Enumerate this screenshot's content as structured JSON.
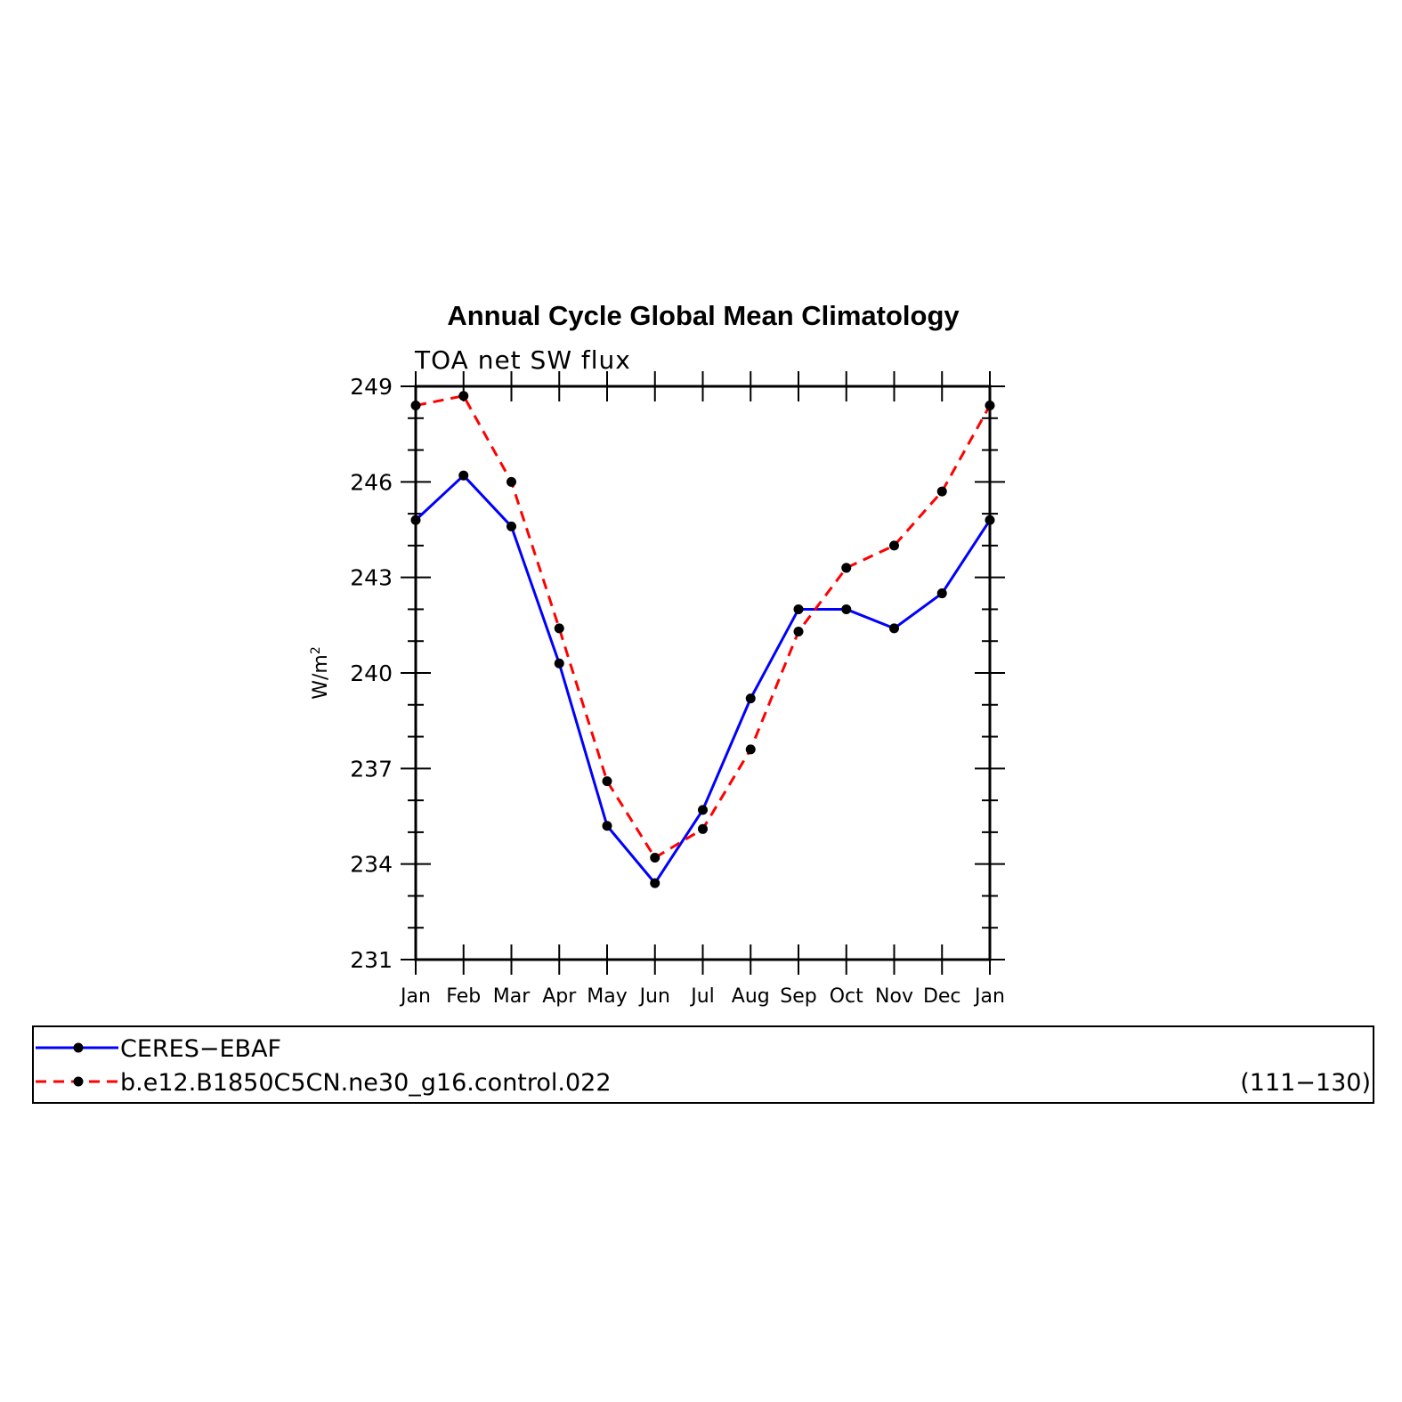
{
  "chart_data": {
    "type": "line",
    "title": "Annual Cycle Global Mean Climatology",
    "subtitle": "TOA net SW flux",
    "xlabel": "",
    "ylabel": "W/m",
    "ylabel_sup": "2",
    "categories": [
      "Jan",
      "Feb",
      "Mar",
      "Apr",
      "May",
      "Jun",
      "Jul",
      "Aug",
      "Sep",
      "Oct",
      "Nov",
      "Dec",
      "Jan"
    ],
    "ylim": [
      231,
      249
    ],
    "yticks": [
      231,
      234,
      237,
      240,
      243,
      246,
      249
    ],
    "grid": false,
    "legend_position": "bottom",
    "series": [
      {
        "name": "CERES−EBAF",
        "color": "#0000ff",
        "style": "solid",
        "values": [
          244.8,
          246.2,
          244.6,
          240.3,
          235.2,
          233.4,
          235.7,
          239.2,
          242.0,
          242.0,
          241.4,
          242.5,
          244.8
        ]
      },
      {
        "name": "b.e12.B1850C5CN.ne30_g16.control.022",
        "color": "#ff0000",
        "style": "dashed",
        "values": [
          248.4,
          248.7,
          246.0,
          241.4,
          236.6,
          234.2,
          235.1,
          237.6,
          241.3,
          243.3,
          244.0,
          245.7,
          248.4
        ]
      }
    ],
    "legend_note": "(111−130)",
    "marker_color": "#000000"
  }
}
